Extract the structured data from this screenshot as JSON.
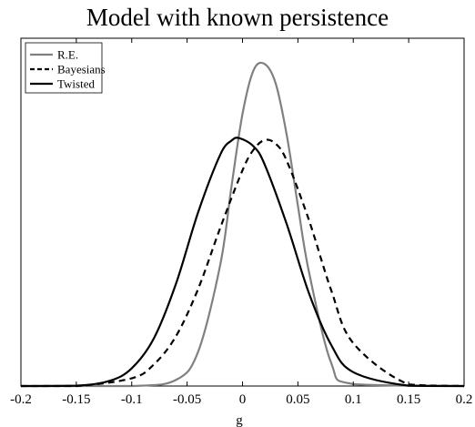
{
  "chart_data": {
    "type": "line",
    "title": "Model with known persistence",
    "xlabel": "g",
    "ylabel": "",
    "xlim": [
      -0.2,
      0.2
    ],
    "ylim": [
      0,
      1.08
    ],
    "yticks_shown": false,
    "grid": false,
    "legend_position": "top-left",
    "x_tick_labels": [
      "-0.2",
      "-0.15",
      "-0.1",
      "-0.05",
      "0",
      "0.05",
      "0.1",
      "0.15",
      "0.2"
    ],
    "x_ticks": [
      -0.2,
      -0.15,
      -0.1,
      -0.05,
      0,
      0.05,
      0.1,
      0.15,
      0.2
    ],
    "series": [
      {
        "name": "R.E.",
        "color": "#808080",
        "style": "solid",
        "x": [
          -0.2,
          -0.1,
          -0.06,
          -0.04,
          -0.02,
          -0.01,
          0,
          0.01,
          0.02,
          0.03,
          0.04,
          0.05,
          0.06,
          0.08,
          0.1,
          0.2
        ],
        "y": [
          0,
          0,
          0.019,
          0.107,
          0.378,
          0.618,
          0.845,
          0.981,
          1.0,
          0.939,
          0.778,
          0.56,
          0.354,
          0.072,
          0.006,
          0
        ]
      },
      {
        "name": "Bayesians",
        "color": "#000000",
        "style": "dashed",
        "x": [
          -0.2,
          -0.15,
          -0.1,
          -0.08,
          -0.06,
          -0.04,
          -0.02,
          0,
          0.01,
          0.02,
          0.03,
          0.04,
          0.06,
          0.08,
          0.1,
          0.15,
          0.2
        ],
        "y": [
          0,
          0,
          0.024,
          0.067,
          0.155,
          0.302,
          0.492,
          0.67,
          0.734,
          0.764,
          0.752,
          0.699,
          0.515,
          0.298,
          0.133,
          0.005,
          0
        ]
      },
      {
        "name": "Twisted",
        "color": "#000000",
        "style": "solid",
        "x": [
          -0.2,
          -0.15,
          -0.12,
          -0.1,
          -0.08,
          -0.06,
          -0.04,
          -0.02,
          -0.01,
          -0.003,
          0.01,
          0.02,
          0.04,
          0.06,
          0.08,
          0.1,
          0.15,
          0.2
        ],
        "y": [
          0,
          0.001,
          0.016,
          0.055,
          0.148,
          0.318,
          0.54,
          0.719,
          0.762,
          0.77,
          0.744,
          0.688,
          0.502,
          0.288,
          0.128,
          0.043,
          0.001,
          0
        ]
      }
    ]
  }
}
